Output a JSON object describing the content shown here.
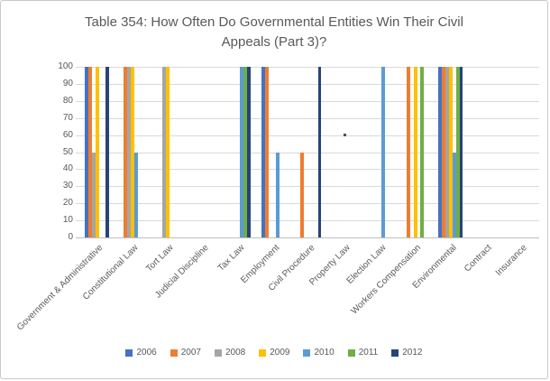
{
  "chart_data": {
    "type": "bar",
    "title": "Table 354: How Often Do Governmental Entities Win Their Civil Appeals (Part 3)?",
    "categories": [
      "Government & Administrative",
      "Constitutional Law",
      "Tort Law",
      "Judicial Discipline",
      "Tax Law",
      "Employment",
      "Civil Procedure",
      "Property Law",
      "Election Law",
      "Workers Compensation",
      "Environmental",
      "Contract",
      "Insurance"
    ],
    "series": [
      {
        "name": "2006",
        "color": "#4472C4",
        "values": [
          100,
          null,
          null,
          null,
          null,
          100,
          null,
          null,
          null,
          null,
          100,
          null,
          null
        ]
      },
      {
        "name": "2007",
        "color": "#ED7D31",
        "values": [
          100,
          100,
          null,
          null,
          null,
          100,
          50,
          null,
          null,
          100,
          100,
          null,
          null
        ]
      },
      {
        "name": "2008",
        "color": "#A5A5A5",
        "values": [
          50,
          100,
          100,
          null,
          null,
          null,
          null,
          null,
          null,
          null,
          100,
          null,
          null
        ]
      },
      {
        "name": "2009",
        "color": "#FFC000",
        "values": [
          100,
          100,
          100,
          null,
          null,
          null,
          null,
          null,
          null,
          100,
          100,
          null,
          null
        ]
      },
      {
        "name": "2010",
        "color": "#5B9BD5",
        "values": [
          null,
          50,
          null,
          null,
          100,
          50,
          null,
          null,
          100,
          null,
          50,
          null,
          null
        ]
      },
      {
        "name": "2011",
        "color": "#70AD47",
        "values": [
          null,
          null,
          null,
          null,
          100,
          null,
          null,
          null,
          null,
          100,
          100,
          null,
          null
        ]
      },
      {
        "name": "2012",
        "color": "#264478",
        "values": [
          100,
          null,
          null,
          null,
          100,
          null,
          100,
          null,
          null,
          null,
          100,
          null,
          null
        ]
      }
    ],
    "ylim": [
      0,
      100
    ],
    "yticks": [
      0,
      10,
      20,
      30,
      40,
      50,
      60,
      70,
      80,
      90,
      100
    ],
    "grid": true,
    "legend_position": "bottom",
    "stray_marker": {
      "category_index": 7,
      "value": 60,
      "color": "#44546A"
    },
    "axis_text_color": "#595959",
    "gridline_color": "#d9d9d9"
  }
}
